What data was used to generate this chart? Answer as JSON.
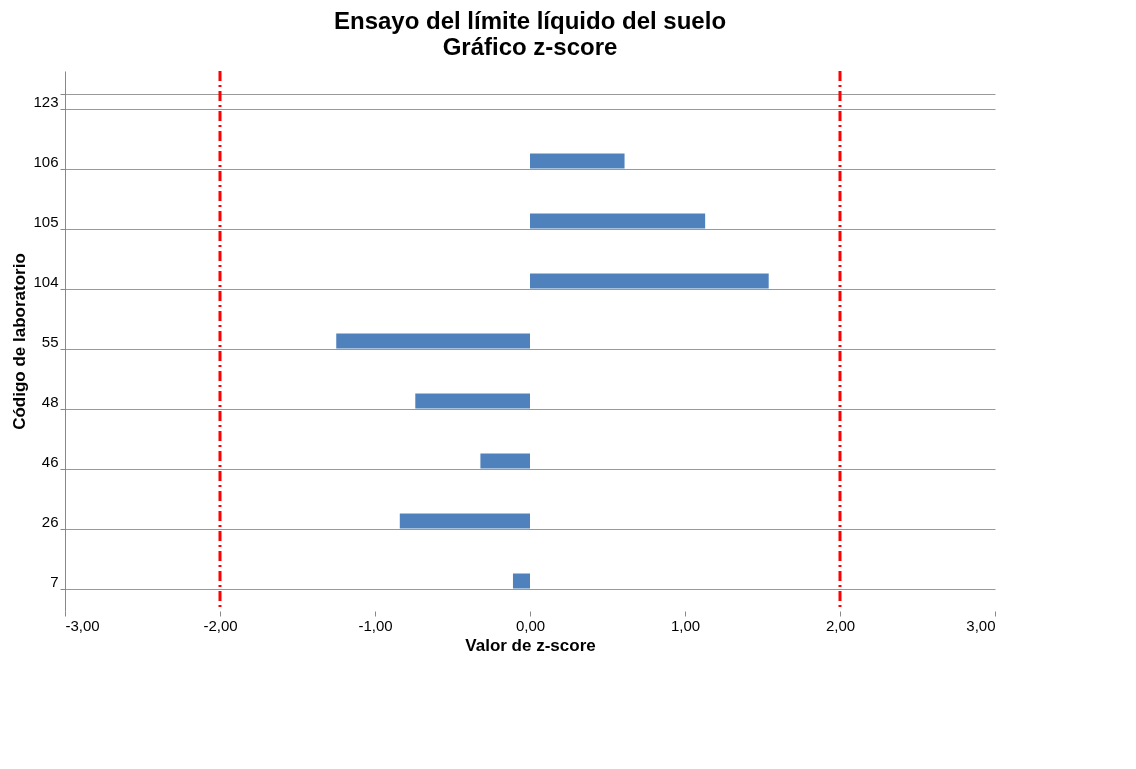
{
  "chart_data": {
    "type": "bar",
    "orientation": "horizontal",
    "title": [
      "Ensayo del límite líquido del suelo",
      "Gráfico z-score"
    ],
    "xlabel": "Valor de z-score",
    "ylabel": "Código de laboratorio",
    "categories": [
      "123",
      "106",
      "105",
      "104",
      "55",
      "48",
      "46",
      "26",
      "7"
    ],
    "values": [
      null,
      0.61,
      1.13,
      1.54,
      -1.25,
      -0.74,
      -0.32,
      -0.84,
      -0.11
    ],
    "color": "#4f81bd",
    "xlim": [
      -3,
      3
    ],
    "xticks": [
      {
        "value": -3,
        "label": "-3,00"
      },
      {
        "value": -2,
        "label": "-2,00"
      },
      {
        "value": -1,
        "label": "-1,00"
      },
      {
        "value": 0,
        "label": "0,00"
      },
      {
        "value": 1,
        "label": "1,00"
      },
      {
        "value": 2,
        "label": "2,00"
      },
      {
        "value": 3,
        "label": "3,00"
      }
    ],
    "ref_lines": [
      {
        "axis": "x",
        "value": -2,
        "color": "#ff0000",
        "line_style": "dashed"
      },
      {
        "axis": "x",
        "value": 2,
        "color": "#ff0000",
        "line_style": "dashed"
      }
    ],
    "grid": "y"
  }
}
